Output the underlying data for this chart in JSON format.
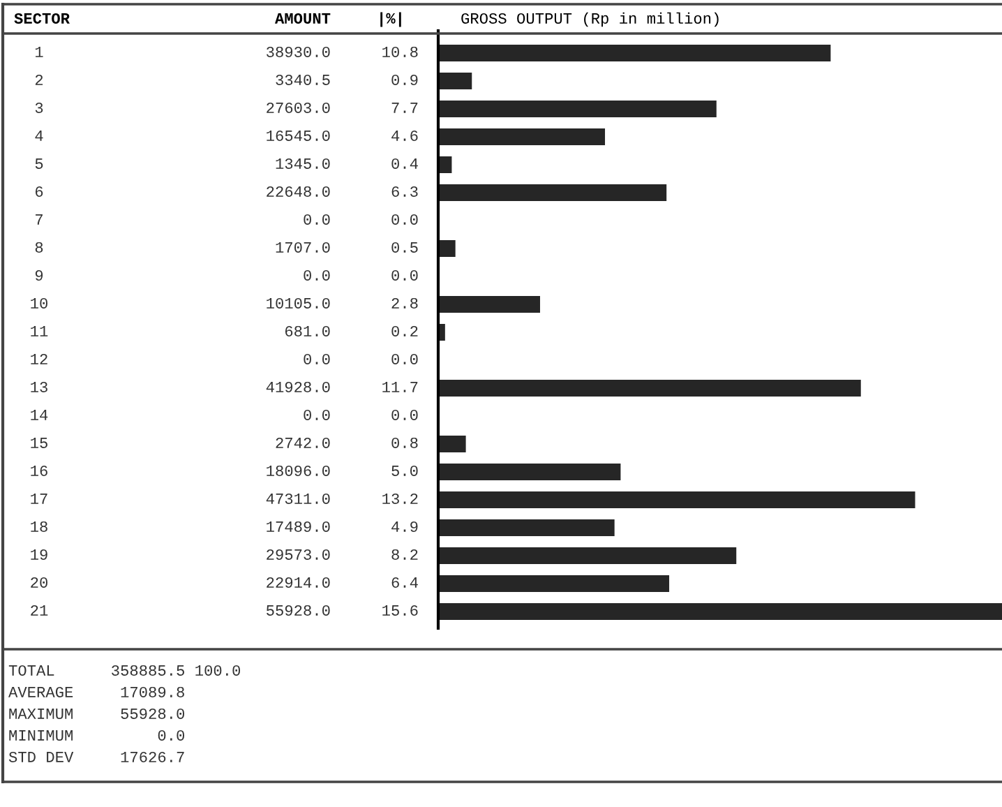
{
  "chart_data": {
    "type": "bar",
    "orientation": "horizontal",
    "title": "GROSS OUTPUT (Rp in million)",
    "ylabel": "SECTOR",
    "xlabel": "AMOUNT",
    "categories": [
      "1",
      "2",
      "3",
      "4",
      "5",
      "6",
      "7",
      "8",
      "9",
      "10",
      "11",
      "12",
      "13",
      "14",
      "15",
      "16",
      "17",
      "18",
      "19",
      "20",
      "21"
    ],
    "values": [
      38930.0,
      3340.5,
      27603.0,
      16545.0,
      1345.0,
      22648.0,
      0.0,
      1707.0,
      0.0,
      10105.0,
      681.0,
      0.0,
      41928.0,
      0.0,
      2742.0,
      18096.0,
      47311.0,
      17489.0,
      29573.0,
      22914.0,
      55928.0
    ],
    "value_labels": [
      "38930.0",
      "3340.5",
      "27603.0",
      "16545.0",
      "1345.0",
      "22648.0",
      "0.0",
      "1707.0",
      "0.0",
      "10105.0",
      "681.0",
      "0.0",
      "41928.0",
      "0.0",
      "2742.0",
      "18096.0",
      "47311.0",
      "17489.0",
      "29573.0",
      "22914.0",
      "55928.0"
    ],
    "color": "#262626",
    "annotations": [
      "|%|",
      "10.8",
      "0.9",
      "7.7",
      "4.6",
      "0.4",
      "6.3",
      "0.0",
      "0.5",
      "0.0",
      "2.8",
      "0.2",
      "0.0",
      "11.7",
      "0.0",
      "0.8",
      "5.0",
      "13.2",
      "4.9",
      "8.2",
      "6.4",
      "15.6",
      "TOTAL      358885.5 100.0",
      "AVERAGE     17089.8",
      "MAXIMUM     55928.0",
      "MINIMUM         0.0",
      "STD DEV     17626.7"
    ]
  }
}
